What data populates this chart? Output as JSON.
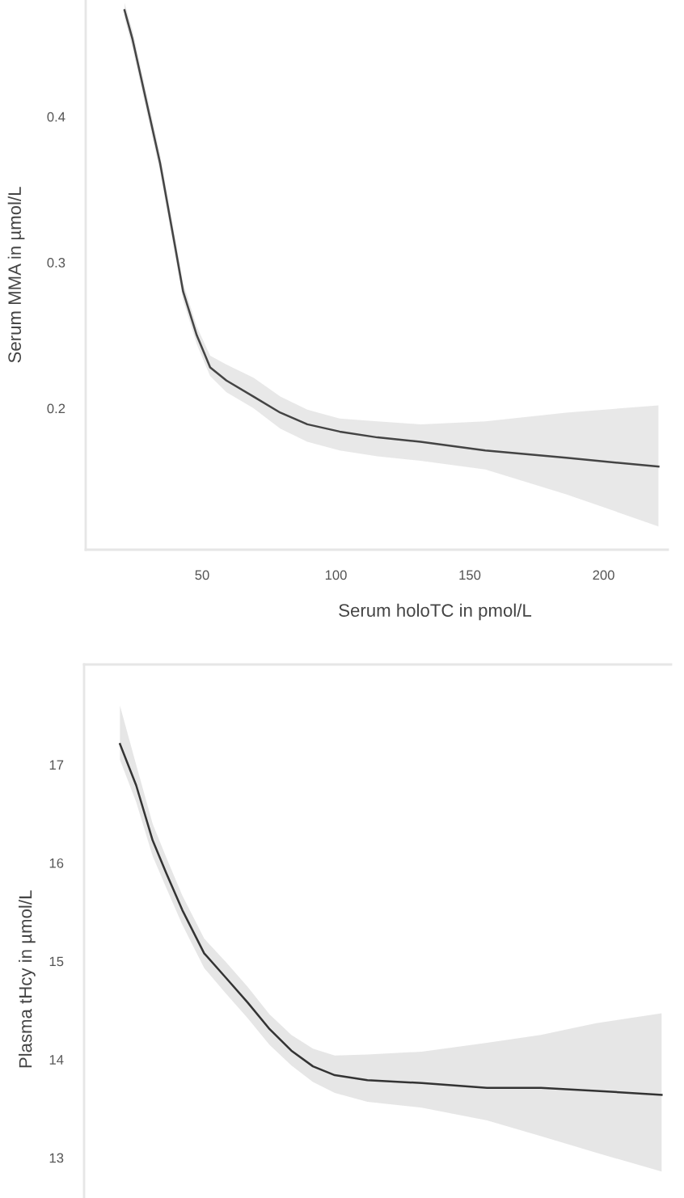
{
  "chart_data": [
    {
      "type": "line",
      "xlabel": "Serum holoTC in pmol/L",
      "ylabel": "Serum MMA in µmol/L",
      "x": [
        21.0,
        24.0,
        34.3,
        39.7,
        42.9,
        48.0,
        53.0,
        59.1,
        69.2,
        79.2,
        89.3,
        101.4,
        115.5,
        131.6,
        155.8,
        186.0,
        220.5
      ],
      "xlim": [
        6.5,
        224
      ],
      "xticks": [
        50,
        100,
        150,
        200
      ],
      "ylim": [
        0.103,
        0.48
      ],
      "yticks": [
        0.2,
        0.3,
        0.4
      ],
      "series": [
        {
          "color": "#444444",
          "values": [
            0.473,
            0.453,
            0.368,
            0.313,
            0.28,
            0.25,
            0.228,
            0.219,
            0.208,
            0.197,
            0.189,
            0.184,
            0.18,
            0.177,
            0.171,
            0.166,
            0.16
          ],
          "upper": [
            0.478,
            0.459,
            0.374,
            0.319,
            0.286,
            0.256,
            0.236,
            0.23,
            0.221,
            0.208,
            0.199,
            0.193,
            0.191,
            0.189,
            0.191,
            0.197,
            0.202
          ],
          "lower": [
            0.468,
            0.447,
            0.362,
            0.307,
            0.274,
            0.244,
            0.222,
            0.211,
            0.2,
            0.186,
            0.177,
            0.171,
            0.167,
            0.164,
            0.158,
            0.141,
            0.119
          ]
        }
      ]
    },
    {
      "type": "line",
      "ylabel": "Plasma tHcy in µmol/L",
      "x": [
        19.8,
        25.8,
        31.9,
        36.9,
        42.9,
        51.0,
        59.1,
        67.1,
        75.2,
        83.3,
        91.3,
        99.4,
        111.5,
        131.6,
        155.8,
        175.8,
        196.3,
        220.5
      ],
      "xlim": [
        6.5,
        224
      ],
      "ylim": [
        12.59,
        18.02
      ],
      "yticks": [
        13,
        14,
        15,
        16,
        17
      ],
      "tick_labels": "y",
      "series": [
        {
          "color": "#333333",
          "values": [
            17.21,
            16.79,
            16.23,
            15.9,
            15.52,
            15.08,
            14.83,
            14.58,
            14.31,
            14.09,
            13.93,
            13.84,
            13.79,
            13.76,
            13.71,
            13.71,
            13.68,
            13.64
          ],
          "upper": [
            17.6,
            17.0,
            16.4,
            16.06,
            15.67,
            15.23,
            14.99,
            14.74,
            14.46,
            14.25,
            14.11,
            14.04,
            14.05,
            14.08,
            14.17,
            14.25,
            14.37,
            14.47
          ],
          "lower": [
            17.05,
            16.62,
            16.07,
            15.75,
            15.37,
            14.93,
            14.67,
            14.42,
            14.15,
            13.94,
            13.77,
            13.66,
            13.57,
            13.51,
            13.38,
            13.22,
            13.05,
            12.86
          ]
        }
      ]
    }
  ]
}
